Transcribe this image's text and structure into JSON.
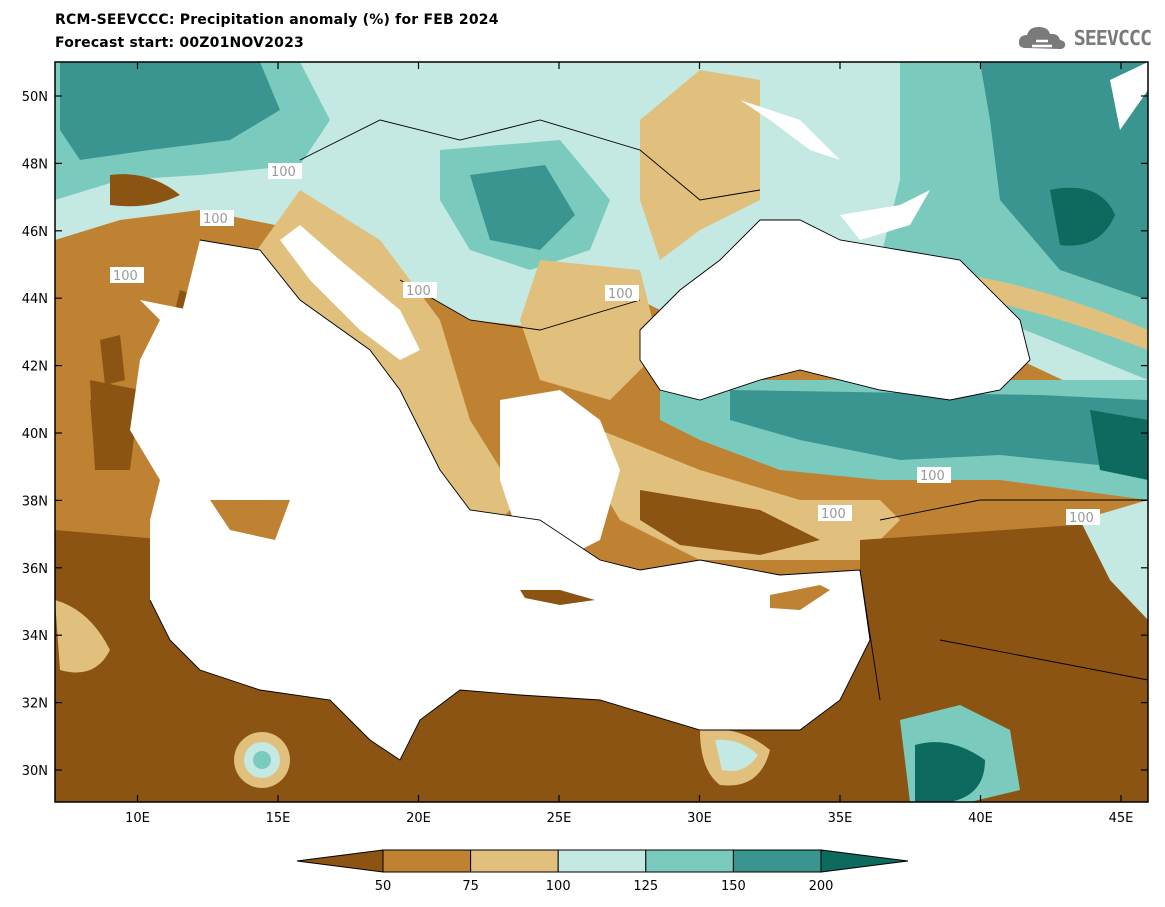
{
  "title_line1": "RCM-SEEVCCC: Precipitation anomaly (%) for FEB 2024",
  "title_line2": "Forecast start: 00Z01NOV2023",
  "logo": {
    "text": "SEEVCCC",
    "icon": "cloud-logo-icon"
  },
  "map": {
    "lon_ticks": [
      "10E",
      "15E",
      "20E",
      "25E",
      "30E",
      "35E",
      "40E",
      "45E"
    ],
    "lat_ticks": [
      "50N",
      "48N",
      "46N",
      "44N",
      "42N",
      "40N",
      "38N",
      "36N",
      "34N",
      "32N",
      "30N"
    ],
    "contour_label": "100"
  },
  "legend": {
    "labels": [
      "50",
      "75",
      "100",
      "125",
      "150",
      "200"
    ],
    "colors": [
      "#8c5412",
      "#be8232",
      "#e0c07c",
      "#c4e8e2",
      "#7acbbd",
      "#3a9590",
      "#0c6a5e"
    ]
  }
}
